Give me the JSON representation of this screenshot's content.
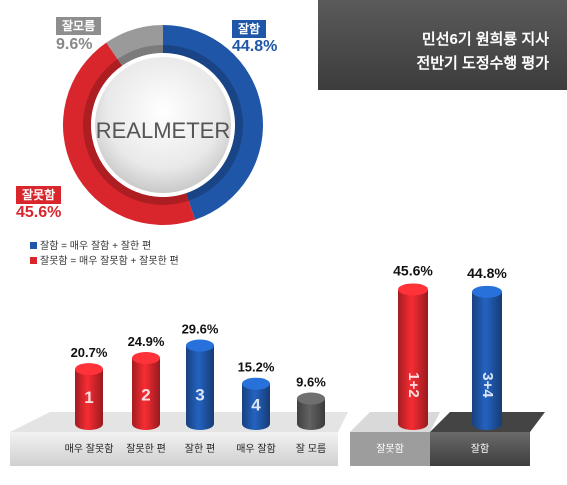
{
  "title": {
    "line1": "민선6기 원희룡 지사",
    "line2": "전반기 도정수행 평가"
  },
  "brand": "REALMETER",
  "colors": {
    "good": "#1f56a8",
    "bad": "#d8262c",
    "neutral": "#8e8e8e"
  },
  "legend": [
    {
      "text": "잘함 = 매우 잘함 + 잘한 편",
      "color": "#1f56a8"
    },
    {
      "text": "잘못함 = 매우 잘못함 + 잘못한 편",
      "color": "#d8262c"
    }
  ],
  "chart_data": [
    {
      "type": "pie",
      "style": "donut",
      "slices": [
        {
          "label": "잘함",
          "value": 44.8,
          "value_label": "44.8%",
          "color": "#1f56a8"
        },
        {
          "label": "잘못함",
          "value": 45.6,
          "value_label": "45.6%",
          "color": "#d8262c"
        },
        {
          "label": "잘모름",
          "value": 9.6,
          "value_label": "9.6%",
          "color": "#9a9a9a"
        }
      ]
    },
    {
      "type": "bar",
      "style": "3d-cylinder",
      "categories": [
        "매우 잘못함",
        "잘못한 편",
        "잘한 편",
        "매우 잘함",
        "잘 모름"
      ],
      "numbers": [
        "1",
        "2",
        "3",
        "4",
        ""
      ],
      "values": [
        20.7,
        24.9,
        29.6,
        15.2,
        9.6
      ],
      "value_labels": [
        "20.7%",
        "24.9%",
        "29.6%",
        "15.2%",
        "9.6%"
      ],
      "colors": [
        "#d8262c",
        "#d8262c",
        "#1f56a8",
        "#1f56a8",
        "#555555"
      ]
    },
    {
      "type": "bar",
      "style": "3d-cylinder",
      "categories": [
        "잘못함",
        "잘함"
      ],
      "numbers": [
        "1+2",
        "3+4"
      ],
      "values": [
        45.6,
        44.8
      ],
      "value_labels": [
        "45.6%",
        "44.8%"
      ],
      "colors": [
        "#d8262c",
        "#1f56a8"
      ]
    }
  ]
}
